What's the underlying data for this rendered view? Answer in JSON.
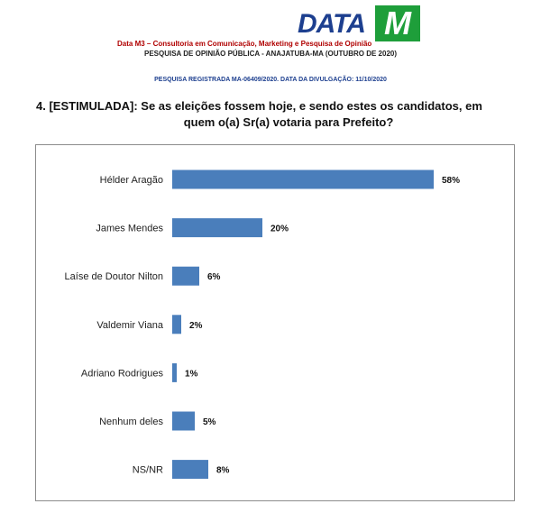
{
  "header": {
    "watermark": "",
    "logo": {
      "word": "DATA",
      "letter": "M",
      "word_color": "#1d3f8f",
      "letter_bg": "#1e9e3a"
    },
    "company": "Data M3 – Consultoria em Comunicação, Marketing e Pesquisa de Opinião",
    "survey_line": "PESQUISA DE OPINIÃO PÚBLICA - ANAJATUBA-MA (OUTUBRO DE 2020)",
    "registration": "PESQUISA REGISTRADA MA-06409/2020. DATA DA DIVULGAÇÃO: 11/10/2020"
  },
  "question": {
    "line1": "4. [ESTIMULADA]: Se as eleições fossem hoje, e sendo estes os candidatos, em",
    "line2": "quem o(a) Sr(a) votaria para Prefeito?"
  },
  "chart_data": {
    "type": "bar",
    "orientation": "horizontal",
    "categories": [
      "Hélder Aragão",
      "James  Mendes",
      "Laíse de Doutor Nilton",
      "Valdemir Viana",
      "Adriano Rodrigues",
      "Nenhum deles",
      "NS/NR"
    ],
    "values": [
      58,
      20,
      6,
      2,
      1,
      5,
      8
    ],
    "value_labels": [
      "58%",
      "20%",
      "6%",
      "2%",
      "1%",
      "5%",
      "8%"
    ],
    "unit": "%",
    "xlim": [
      0,
      60
    ],
    "grid": false,
    "legend": "none",
    "bar_color": "#4a7ebb"
  }
}
